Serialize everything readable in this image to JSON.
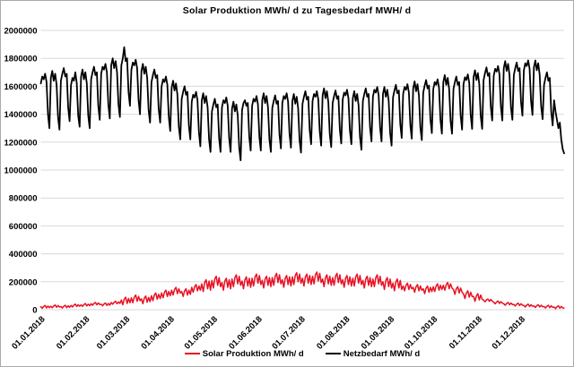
{
  "colors": {
    "grid": "#d9d9d9",
    "frame_border": "#a9a9a9",
    "text": "#000000"
  },
  "chart_data": {
    "type": "line",
    "title": "Solar Produktion MWh/ d zu Tagesbedarf MWH/ d",
    "xlabel": "",
    "ylabel": "",
    "ylim": [
      0,
      2000000
    ],
    "y_ticks": [
      0,
      200000,
      400000,
      600000,
      800000,
      1000000,
      1200000,
      1400000,
      1600000,
      1800000,
      2000000
    ],
    "x_tick_labels": [
      "01.01.2018",
      "01.02.2018",
      "01.03.2018",
      "01.04.2018",
      "01.05.2018",
      "01.06.2018",
      "01.07.2018",
      "01.08.2018",
      "01.09.2018",
      "01.10.2018",
      "01.11.2018",
      "01.12.2018"
    ],
    "x_tick_day_index": [
      0,
      31,
      59,
      90,
      120,
      151,
      181,
      212,
      243,
      273,
      304,
      334
    ],
    "days_total": 365,
    "grid": "horizontal",
    "legend_position": "bottom",
    "series": [
      {
        "name": "Solar Produktion MWh/ d",
        "color": "#e81123",
        "values": [
          21000,
          10000,
          23000,
          30000,
          13000,
          26000,
          15000,
          25000,
          14000,
          27000,
          34000,
          17000,
          30000,
          19000,
          23000,
          12000,
          25000,
          32000,
          15000,
          28000,
          17000,
          31000,
          20000,
          33000,
          40000,
          23000,
          36000,
          25000,
          35000,
          24000,
          37000,
          44000,
          27000,
          40000,
          29000,
          43000,
          32000,
          45000,
          52000,
          35000,
          48000,
          37000,
          39000,
          28000,
          41000,
          48000,
          31000,
          44000,
          33000,
          51000,
          40000,
          53000,
          60000,
          43000,
          56000,
          45000,
          70000,
          35000,
          75000,
          90000,
          45000,
          80000,
          50000,
          85000,
          50000,
          90000,
          105000,
          60000,
          95000,
          65000,
          78000,
          43000,
          83000,
          98000,
          53000,
          88000,
          58000,
          100000,
          65000,
          105000,
          120000,
          75000,
          110000,
          80000,
          120000,
          85000,
          125000,
          140000,
          95000,
          130000,
          100000,
          140000,
          105000,
          145000,
          160000,
          115000,
          150000,
          120000,
          130000,
          95000,
          135000,
          150000,
          105000,
          140000,
          110000,
          160000,
          125000,
          165000,
          180000,
          135000,
          170000,
          140000,
          185000,
          130000,
          195000,
          215000,
          150000,
          205000,
          140000,
          210000,
          155000,
          220000,
          240000,
          175000,
          230000,
          165000,
          195000,
          140000,
          205000,
          225000,
          160000,
          215000,
          150000,
          220000,
          165000,
          230000,
          250000,
          185000,
          240000,
          175000,
          205000,
          150000,
          215000,
          235000,
          170000,
          225000,
          160000,
          225000,
          170000,
          235000,
          255000,
          190000,
          245000,
          180000,
          210000,
          155000,
          220000,
          240000,
          175000,
          230000,
          165000,
          230000,
          175000,
          240000,
          260000,
          195000,
          250000,
          185000,
          215000,
          160000,
          225000,
          245000,
          180000,
          235000,
          170000,
          235000,
          180000,
          245000,
          265000,
          200000,
          255000,
          190000,
          225000,
          170000,
          235000,
          255000,
          190000,
          245000,
          180000,
          240000,
          185000,
          250000,
          270000,
          205000,
          260000,
          195000,
          220000,
          165000,
          230000,
          250000,
          185000,
          240000,
          175000,
          230000,
          175000,
          240000,
          260000,
          195000,
          250000,
          185000,
          215000,
          160000,
          225000,
          245000,
          180000,
          235000,
          170000,
          225000,
          170000,
          235000,
          255000,
          190000,
          245000,
          180000,
          210000,
          155000,
          220000,
          240000,
          175000,
          230000,
          165000,
          220000,
          165000,
          230000,
          250000,
          185000,
          240000,
          175000,
          200000,
          145000,
          210000,
          230000,
          165000,
          220000,
          155000,
          190000,
          135000,
          200000,
          220000,
          155000,
          210000,
          145000,
          170000,
          135000,
          175000,
          190000,
          145000,
          180000,
          150000,
          160000,
          125000,
          165000,
          180000,
          135000,
          170000,
          140000,
          150000,
          115000,
          155000,
          170000,
          125000,
          160000,
          130000,
          165000,
          130000,
          170000,
          185000,
          140000,
          175000,
          145000,
          175000,
          140000,
          180000,
          195000,
          150000,
          185000,
          155000,
          145000,
          110000,
          150000,
          165000,
          120000,
          155000,
          125000,
          115000,
          80000,
          120000,
          135000,
          90000,
          125000,
          95000,
          95000,
          60000,
          100000,
          115000,
          70000,
          105000,
          75000,
          68000,
          57000,
          70000,
          77000,
          60000,
          73000,
          62000,
          53000,
          42000,
          55000,
          62000,
          45000,
          58000,
          47000,
          43000,
          32000,
          45000,
          52000,
          35000,
          48000,
          37000,
          38000,
          27000,
          40000,
          47000,
          30000,
          43000,
          32000,
          31000,
          20000,
          33000,
          40000,
          23000,
          36000,
          25000,
          27000,
          16000,
          29000,
          36000,
          19000,
          32000,
          21000,
          23000,
          12000,
          25000,
          32000,
          15000,
          28000,
          17000,
          19000,
          8000,
          21000,
          28000,
          11000,
          24000,
          13000,
          12000
        ]
      },
      {
        "name": "Netzbedarf MWh/ d",
        "color": "#000000",
        "values": [
          1620000,
          1670000,
          1650000,
          1690000,
          1630000,
          1400000,
          1300000,
          1660000,
          1710000,
          1640000,
          1690000,
          1610000,
          1380000,
          1290000,
          1640000,
          1690000,
          1730000,
          1670000,
          1690000,
          1450000,
          1350000,
          1610000,
          1660000,
          1640000,
          1700000,
          1620000,
          1390000,
          1310000,
          1670000,
          1720000,
          1650000,
          1700000,
          1620000,
          1390000,
          1300000,
          1650000,
          1700000,
          1740000,
          1680000,
          1700000,
          1460000,
          1360000,
          1690000,
          1740000,
          1720000,
          1760000,
          1700000,
          1470000,
          1370000,
          1750000,
          1800000,
          1730000,
          1780000,
          1700000,
          1470000,
          1380000,
          1750000,
          1800000,
          1880000,
          1780000,
          1800000,
          1560000,
          1460000,
          1720000,
          1770000,
          1750000,
          1790000,
          1730000,
          1500000,
          1400000,
          1710000,
          1760000,
          1690000,
          1740000,
          1660000,
          1430000,
          1340000,
          1630000,
          1680000,
          1720000,
          1660000,
          1680000,
          1440000,
          1340000,
          1600000,
          1650000,
          1630000,
          1670000,
          1610000,
          1380000,
          1280000,
          1590000,
          1640000,
          1570000,
          1620000,
          1540000,
          1310000,
          1220000,
          1510000,
          1560000,
          1600000,
          1540000,
          1560000,
          1320000,
          1220000,
          1490000,
          1540000,
          1520000,
          1560000,
          1500000,
          1270000,
          1170000,
          1500000,
          1550000,
          1480000,
          1530000,
          1450000,
          1220000,
          1130000,
          1420000,
          1470000,
          1510000,
          1450000,
          1470000,
          1230000,
          1130000,
          1450000,
          1500000,
          1480000,
          1520000,
          1460000,
          1230000,
          1130000,
          1440000,
          1490000,
          1420000,
          1470000,
          1390000,
          1160000,
          1070000,
          1430000,
          1480000,
          1500000,
          1460000,
          1480000,
          1240000,
          1140000,
          1460000,
          1510000,
          1490000,
          1530000,
          1470000,
          1240000,
          1140000,
          1500000,
          1550000,
          1480000,
          1530000,
          1450000,
          1220000,
          1130000,
          1445000,
          1495000,
          1535000,
          1475000,
          1495000,
          1255000,
          1155000,
          1480000,
          1530000,
          1510000,
          1550000,
          1490000,
          1260000,
          1160000,
          1495000,
          1545000,
          1475000,
          1525000,
          1445000,
          1215000,
          1125000,
          1475000,
          1525000,
          1565000,
          1505000,
          1525000,
          1285000,
          1185000,
          1495000,
          1545000,
          1525000,
          1565000,
          1505000,
          1275000,
          1175000,
          1535000,
          1585000,
          1515000,
          1565000,
          1485000,
          1255000,
          1165000,
          1480000,
          1530000,
          1570000,
          1510000,
          1530000,
          1290000,
          1190000,
          1505000,
          1555000,
          1535000,
          1575000,
          1515000,
          1285000,
          1185000,
          1515000,
          1565000,
          1495000,
          1545000,
          1465000,
          1235000,
          1145000,
          1495000,
          1545000,
          1585000,
          1525000,
          1545000,
          1305000,
          1205000,
          1525000,
          1575000,
          1555000,
          1595000,
          1535000,
          1305000,
          1205000,
          1545000,
          1595000,
          1525000,
          1575000,
          1495000,
          1265000,
          1175000,
          1520000,
          1570000,
          1610000,
          1550000,
          1570000,
          1330000,
          1230000,
          1545000,
          1595000,
          1575000,
          1615000,
          1555000,
          1325000,
          1225000,
          1585000,
          1635000,
          1565000,
          1615000,
          1535000,
          1305000,
          1215000,
          1555000,
          1605000,
          1645000,
          1585000,
          1605000,
          1365000,
          1265000,
          1580000,
          1630000,
          1610000,
          1650000,
          1590000,
          1360000,
          1260000,
          1630000,
          1680000,
          1610000,
          1660000,
          1580000,
          1350000,
          1260000,
          1580000,
          1630000,
          1670000,
          1610000,
          1630000,
          1390000,
          1290000,
          1615000,
          1665000,
          1645000,
          1685000,
          1625000,
          1395000,
          1295000,
          1665000,
          1715000,
          1645000,
          1695000,
          1615000,
          1385000,
          1295000,
          1645000,
          1695000,
          1735000,
          1675000,
          1695000,
          1455000,
          1355000,
          1675000,
          1725000,
          1705000,
          1745000,
          1685000,
          1455000,
          1355000,
          1730000,
          1780000,
          1710000,
          1760000,
          1680000,
          1450000,
          1360000,
          1680000,
          1730000,
          1770000,
          1710000,
          1730000,
          1490000,
          1390000,
          1715000,
          1765000,
          1745000,
          1785000,
          1725000,
          1495000,
          1395000,
          1735000,
          1785000,
          1715000,
          1765000,
          1685000,
          1455000,
          1365000,
          1610000,
          1660000,
          1700000,
          1640000,
          1660000,
          1420000,
          1320000,
          1500000,
          1420000,
          1360000,
          1300000,
          1340000,
          1220000,
          1150000,
          1120000
        ]
      }
    ]
  }
}
